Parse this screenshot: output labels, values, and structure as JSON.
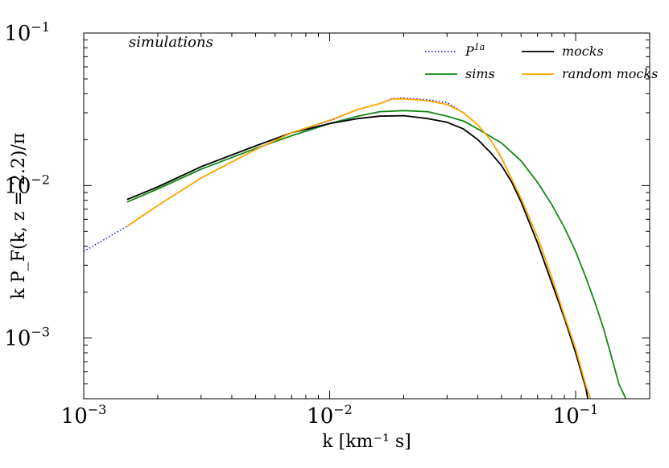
{
  "chart_data": {
    "type": "line",
    "title": "simulations",
    "xlabel": "k [km⁻¹ s]",
    "ylabel": "k P_F(k, z = 2.2)/π",
    "xscale": "log",
    "yscale": "log",
    "xlim": [
      0.001,
      0.2
    ],
    "ylim": [
      0.0004,
      0.1
    ],
    "x_ticks": [
      {
        "value": 0.001,
        "base": "10",
        "exp": "−3"
      },
      {
        "value": 0.01,
        "base": "10",
        "exp": "−2"
      },
      {
        "value": 0.1,
        "base": "10",
        "exp": "−1"
      }
    ],
    "y_ticks": [
      {
        "value": 0.001,
        "base": "10",
        "exp": "−3"
      },
      {
        "value": 0.01,
        "base": "10",
        "exp": "−2"
      },
      {
        "value": 0.1,
        "base": "10",
        "exp": "−1"
      }
    ],
    "legend_position": "top-right",
    "series": [
      {
        "name": "P^1a",
        "label_base": "P",
        "label_sup": "1a",
        "color": "#0000cc",
        "dash": "dotted",
        "x": [
          0.001,
          0.0015,
          0.002,
          0.003,
          0.005,
          0.007,
          0.01,
          0.013,
          0.016,
          0.018,
          0.02,
          0.025,
          0.03,
          0.035,
          0.04,
          0.045,
          0.05,
          0.055,
          0.06,
          0.07,
          0.08,
          0.09,
          0.1,
          0.11,
          0.115
        ],
        "y": [
          0.0037,
          0.0054,
          0.0074,
          0.0112,
          0.0172,
          0.0222,
          0.0265,
          0.0315,
          0.0345,
          0.0373,
          0.0375,
          0.0365,
          0.035,
          0.03,
          0.025,
          0.02,
          0.015,
          0.011,
          0.0082,
          0.0046,
          0.0025,
          0.0014,
          0.00085,
          0.00049,
          0.0004
        ]
      },
      {
        "name": "sims",
        "color": "#118811",
        "dash": "solid",
        "x": [
          0.0015,
          0.002,
          0.003,
          0.005,
          0.007,
          0.01,
          0.013,
          0.016,
          0.02,
          0.025,
          0.03,
          0.035,
          0.04,
          0.05,
          0.06,
          0.07,
          0.08,
          0.09,
          0.1,
          0.11,
          0.12,
          0.13,
          0.14,
          0.15,
          0.16
        ],
        "y": [
          0.0078,
          0.0095,
          0.0128,
          0.0175,
          0.0212,
          0.0255,
          0.0285,
          0.0305,
          0.031,
          0.0305,
          0.0285,
          0.0265,
          0.0235,
          0.019,
          0.0145,
          0.0105,
          0.0075,
          0.0053,
          0.0037,
          0.0025,
          0.0017,
          0.00115,
          0.00075,
          0.0005,
          0.0004
        ]
      },
      {
        "name": "mocks",
        "color": "#000000",
        "dash": "solid",
        "x": [
          0.0015,
          0.002,
          0.003,
          0.005,
          0.007,
          0.01,
          0.013,
          0.016,
          0.02,
          0.025,
          0.03,
          0.035,
          0.04,
          0.045,
          0.05,
          0.055,
          0.06,
          0.07,
          0.08,
          0.09,
          0.1,
          0.11,
          0.112
        ],
        "y": [
          0.0081,
          0.0098,
          0.0133,
          0.0182,
          0.0222,
          0.0255,
          0.0275,
          0.0285,
          0.0287,
          0.0275,
          0.026,
          0.0235,
          0.02,
          0.0165,
          0.0135,
          0.0105,
          0.0078,
          0.0042,
          0.0023,
          0.00135,
          0.0008,
          0.00047,
          0.0004
        ]
      },
      {
        "name": "random mocks",
        "color": "#ffa500",
        "dash": "solid",
        "x": [
          0.0015,
          0.002,
          0.003,
          0.005,
          0.007,
          0.01,
          0.013,
          0.016,
          0.018,
          0.02,
          0.025,
          0.03,
          0.035,
          0.04,
          0.045,
          0.05,
          0.055,
          0.06,
          0.07,
          0.08,
          0.09,
          0.1,
          0.11,
          0.115
        ],
        "y": [
          0.0054,
          0.0074,
          0.0112,
          0.0172,
          0.0222,
          0.0268,
          0.0315,
          0.0345,
          0.037,
          0.037,
          0.036,
          0.034,
          0.03,
          0.025,
          0.02,
          0.0152,
          0.011,
          0.0082,
          0.0046,
          0.0025,
          0.0014,
          0.00085,
          0.00049,
          0.0004
        ]
      }
    ]
  }
}
